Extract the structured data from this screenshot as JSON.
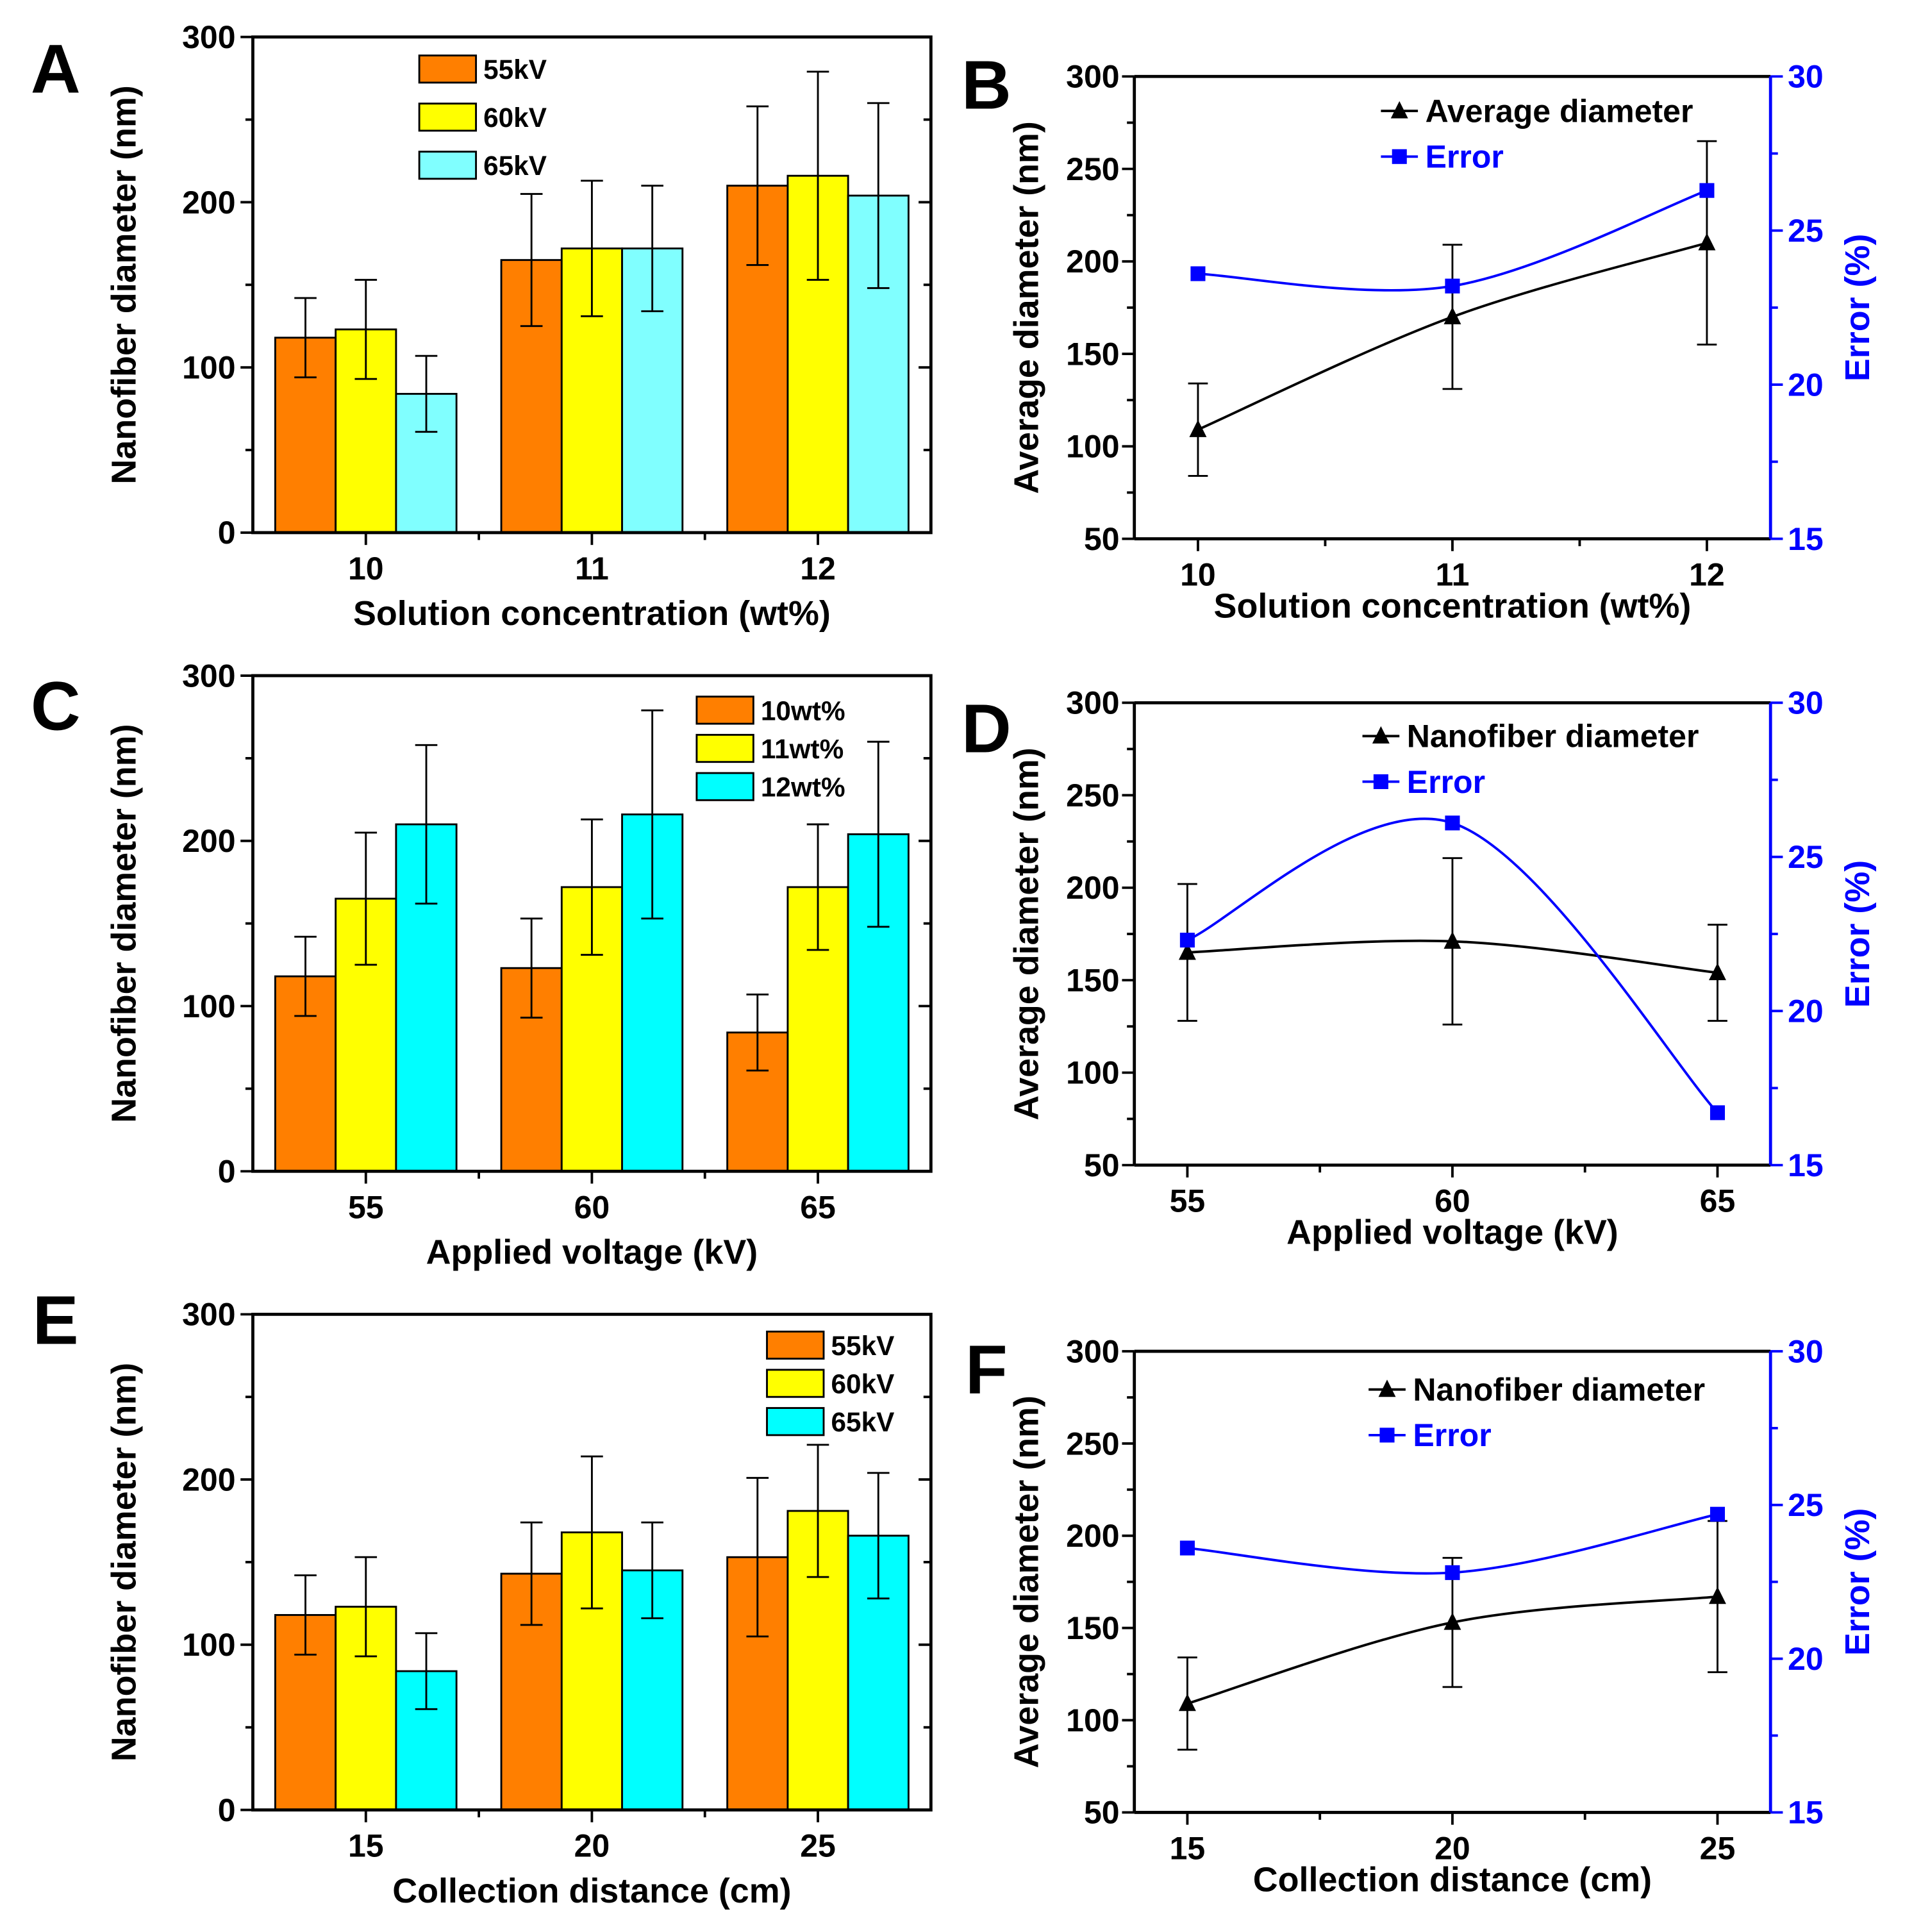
{
  "panel_labels": [
    "A",
    "B",
    "C",
    "D",
    "E",
    "F"
  ],
  "chart_data": [
    {
      "panel": "A",
      "type": "bar",
      "categories": [
        "10",
        "11",
        "12"
      ],
      "xlabel": "Solution concentration (wt%)",
      "ylabel": "Nanofiber diameter (nm)",
      "ylim": [
        0,
        300
      ],
      "yticks": [
        "0",
        "100",
        "200",
        "300"
      ],
      "legend": "top-center",
      "series": [
        {
          "name": "55kV",
          "color": "#FF7F00",
          "values": [
            118,
            165,
            210
          ],
          "errors": [
            24,
            40,
            48
          ]
        },
        {
          "name": "60kV",
          "color": "#FFFF00",
          "values": [
            123,
            172,
            216
          ],
          "errors": [
            30,
            41,
            63
          ]
        },
        {
          "name": "65kV",
          "color": "#80FFFF",
          "values": [
            84,
            172,
            204
          ],
          "errors": [
            23,
            38,
            56
          ]
        }
      ]
    },
    {
      "panel": "B",
      "type": "line",
      "x": [
        10,
        11,
        12
      ],
      "xticks": [
        "10",
        "11",
        "12"
      ],
      "xlim": [
        9.75,
        12.25
      ],
      "xlabel": "Solution concentration (wt%)",
      "ylabel": "Average  diameter (nm)",
      "ylim": [
        50,
        300
      ],
      "yticks": [
        "50",
        "100",
        "150",
        "200",
        "250",
        "300"
      ],
      "y2label": "Error (%)",
      "y2lim": [
        15,
        30
      ],
      "y2ticks": [
        "15",
        "20",
        "25",
        "30"
      ],
      "legend": "top-right",
      "series": [
        {
          "name": "Average diameter",
          "color": "#000000",
          "axis": "left",
          "values": [
            109,
            170,
            210
          ],
          "errors": [
            25,
            39,
            55
          ]
        },
        {
          "name": "Error",
          "color": "#0000FF",
          "axis": "right",
          "values": [
            23.6,
            23.2,
            26.3
          ]
        }
      ]
    },
    {
      "panel": "C",
      "type": "bar",
      "categories": [
        "55",
        "60",
        "65"
      ],
      "xlabel": "Applied voltage (kV)",
      "ylabel": "Nanofiber diameter (nm)",
      "ylim": [
        0,
        300
      ],
      "yticks": [
        "0",
        "100",
        "200",
        "300"
      ],
      "legend": "top-right",
      "series": [
        {
          "name": "10wt%",
          "color": "#FF7F00",
          "values": [
            118,
            123,
            84
          ],
          "errors": [
            24,
            30,
            23
          ]
        },
        {
          "name": "11wt%",
          "color": "#FFFF00",
          "values": [
            165,
            172,
            172
          ],
          "errors": [
            40,
            41,
            38
          ]
        },
        {
          "name": "12wt%",
          "color": "#00FFFF",
          "values": [
            210,
            216,
            204
          ],
          "errors": [
            48,
            63,
            56
          ]
        }
      ]
    },
    {
      "panel": "D",
      "type": "line",
      "x": [
        55,
        60,
        65
      ],
      "xticks": [
        "55",
        "60",
        "65"
      ],
      "xlim": [
        54,
        66
      ],
      "xlabel": "Applied voltage (kV)",
      "ylabel": "Average diameter (nm)",
      "ylim": [
        50,
        300
      ],
      "yticks": [
        "50",
        "100",
        "150",
        "200",
        "250",
        "300"
      ],
      "y2label": "Error (%)",
      "y2lim": [
        15,
        30
      ],
      "y2ticks": [
        "15",
        "20",
        "25",
        "30"
      ],
      "legend": "top-right",
      "series": [
        {
          "name": "Nanofiber diameter",
          "color": "#000000",
          "axis": "left",
          "values": [
            165,
            171,
            154
          ],
          "errors": [
            37,
            45,
            26
          ]
        },
        {
          "name": "Error",
          "color": "#0000FF",
          "axis": "right",
          "values": [
            22.3,
            26.1,
            16.7
          ]
        }
      ]
    },
    {
      "panel": "E",
      "type": "bar",
      "categories": [
        "15",
        "20",
        "25"
      ],
      "xlabel": "Collection distance (cm)",
      "ylabel": "Nanofiber diameter (nm)",
      "ylim": [
        0,
        300
      ],
      "yticks": [
        "0",
        "100",
        "200",
        "300"
      ],
      "legend": "top-right",
      "series": [
        {
          "name": "55kV",
          "color": "#FF7F00",
          "values": [
            118,
            143,
            153
          ],
          "errors": [
            24,
            31,
            48
          ]
        },
        {
          "name": "60kV",
          "color": "#FFFF00",
          "values": [
            123,
            168,
            181
          ],
          "errors": [
            30,
            46,
            40
          ]
        },
        {
          "name": "65kV",
          "color": "#00FFFF",
          "values": [
            84,
            145,
            166
          ],
          "errors": [
            23,
            29,
            38
          ]
        }
      ]
    },
    {
      "panel": "F",
      "type": "line",
      "x": [
        15,
        20,
        25
      ],
      "xticks": [
        "15",
        "20",
        "25"
      ],
      "xlim": [
        14,
        26
      ],
      "xlabel": "Collection distance (cm)",
      "ylabel": "Average diameter (nm)",
      "ylim": [
        50,
        300
      ],
      "yticks": [
        "50",
        "100",
        "150",
        "200",
        "250",
        "300"
      ],
      "y2label": "Error (%)",
      "y2lim": [
        15,
        30
      ],
      "y2ticks": [
        "15",
        "20",
        "25",
        "30"
      ],
      "legend": "top-right",
      "series": [
        {
          "name": "Nanofiber diameter",
          "color": "#000000",
          "axis": "left",
          "values": [
            109,
            153,
            167
          ],
          "errors": [
            25,
            35,
            41
          ]
        },
        {
          "name": "Error",
          "color": "#0000FF",
          "axis": "right",
          "values": [
            23.6,
            22.8,
            24.7
          ]
        }
      ]
    }
  ]
}
